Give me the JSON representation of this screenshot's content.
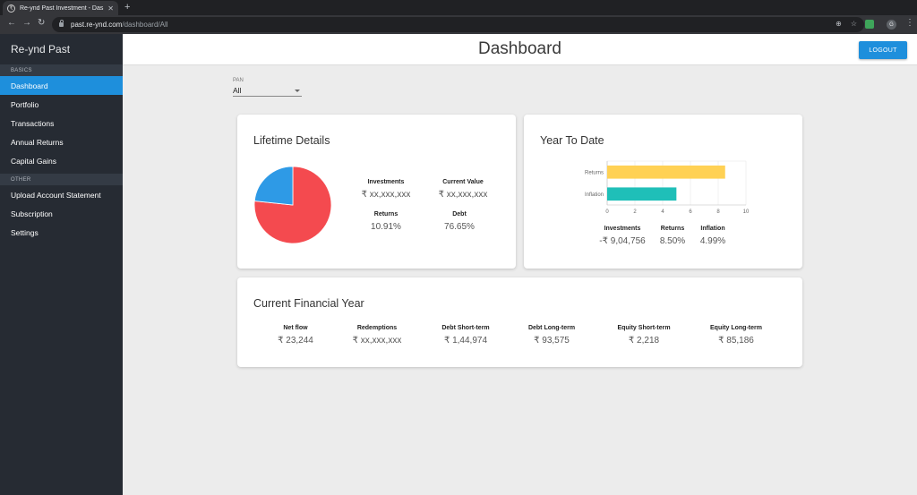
{
  "browser": {
    "tab_title": "Re-ynd Past Investment - Das",
    "favicon": "₹",
    "url_host": "past.re-ynd.com",
    "url_path": "/dashboard/All",
    "profile_initial": "G"
  },
  "sidebar": {
    "brand": "Re-ynd Past",
    "sections": [
      {
        "heading": "BASICS",
        "items": [
          "Dashboard",
          "Portfolio",
          "Transactions",
          "Annual Returns",
          "Capital Gains"
        ]
      },
      {
        "heading": "OTHER",
        "items": [
          "Upload Account Statement",
          "Subscription",
          "Settings"
        ]
      }
    ],
    "active_item": "Dashboard"
  },
  "header": {
    "title": "Dashboard",
    "logout_label": "LOGOUT"
  },
  "pan": {
    "label": "PAN",
    "value": "All"
  },
  "lifetime": {
    "title": "Lifetime Details",
    "investments_label": "Investments",
    "investments_value": "₹ xx,xxx,xxx",
    "current_value_label": "Current Value",
    "current_value_value": "₹ xx,xxx,xxx",
    "returns_label": "Returns",
    "returns_value": "10.91%",
    "debt_label": "Debt",
    "debt_value": "76.65%",
    "pie": {
      "debt_share": 76.65,
      "other_share": 23.35,
      "debt_color": "#f44a4f",
      "other_color": "#2e9ae6"
    }
  },
  "ytd": {
    "title": "Year To Date",
    "investments_label": "Investments",
    "investments_value": "-₹ 9,04,756",
    "returns_label": "Returns",
    "returns_value": "8.50%",
    "inflation_label": "Inflation",
    "inflation_value": "4.99%"
  },
  "chart_data": {
    "type": "bar",
    "orientation": "horizontal",
    "categories": [
      "Returns",
      "Inflation"
    ],
    "values": [
      8.5,
      4.99
    ],
    "colors": [
      "#ffd154",
      "#1fbfb8"
    ],
    "xlim": [
      0,
      10
    ],
    "xticks": [
      0,
      2,
      4,
      6,
      8,
      10
    ],
    "grid": true
  },
  "cfy": {
    "title": "Current Financial Year",
    "stats": [
      {
        "label": "Net flow",
        "value": "₹ 23,244"
      },
      {
        "label": "Redemptions",
        "value": "₹ xx,xxx,xxx"
      },
      {
        "label": "Debt Short-term",
        "value": "₹ 1,44,974"
      },
      {
        "label": "Debt Long-term",
        "value": "₹ 93,575"
      },
      {
        "label": "Equity Short-term",
        "value": "₹ 2,218"
      },
      {
        "label": "Equity Long-term",
        "value": "₹ 85,186"
      }
    ]
  }
}
